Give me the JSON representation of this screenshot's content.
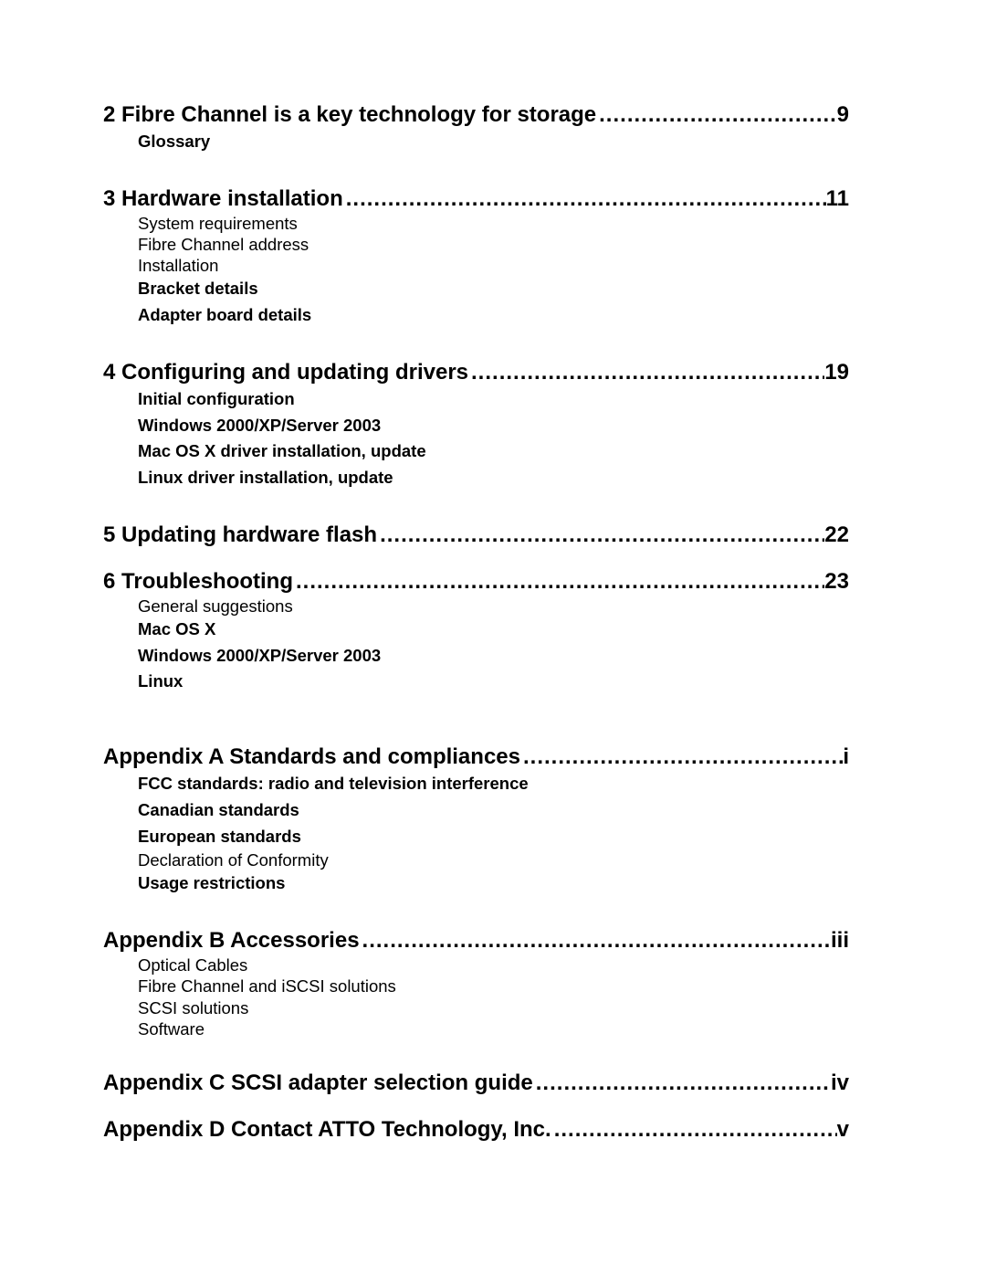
{
  "toc": {
    "sections": [
      {
        "heading": "2 Fibre Channel is a key technology for storage",
        "page": "9",
        "entries": [
          {
            "label": "Glossary",
            "style": "bold"
          }
        ],
        "gap": "normal"
      },
      {
        "heading": "3 Hardware installation",
        "page": "11",
        "entries": [
          {
            "label": "System requirements",
            "style": "normal"
          },
          {
            "label": "Fibre Channel address",
            "style": "normal"
          },
          {
            "label": "Installation",
            "style": "normal"
          },
          {
            "label": "Bracket details",
            "style": "bold"
          },
          {
            "label": "Adapter board details",
            "style": "bold"
          }
        ],
        "gap": "normal"
      },
      {
        "heading": "4 Configuring and updating drivers",
        "page": "19",
        "entries": [
          {
            "label": "Initial configuration",
            "style": "bold"
          },
          {
            "label": "Windows 2000/XP/Server 2003",
            "style": "bold"
          },
          {
            "label": "Mac OS X driver installation, update",
            "style": "bold"
          },
          {
            "label": "Linux driver installation, update",
            "style": "bold"
          }
        ],
        "gap": "normal"
      },
      {
        "heading": "5 Updating hardware flash",
        "page": "22",
        "entries": [],
        "gap": "small"
      },
      {
        "heading": "6 Troubleshooting",
        "page": "23",
        "entries": [
          {
            "label": "General suggestions",
            "style": "normal"
          },
          {
            "label": "Mac OS X",
            "style": "bold"
          },
          {
            "label": "Windows 2000/XP/Server 2003",
            "style": "bold"
          },
          {
            "label": "Linux",
            "style": "bold"
          }
        ],
        "gap": "large"
      },
      {
        "heading": "Appendix A Standards and compliances",
        "page": "i",
        "entries": [
          {
            "label": "FCC standards: radio and television interference",
            "style": "bold"
          },
          {
            "label": "Canadian standards",
            "style": "bold"
          },
          {
            "label": "European standards",
            "style": "bold"
          },
          {
            "label": "Declaration of Conformity",
            "style": "normal"
          },
          {
            "label": "Usage restrictions",
            "style": "bold"
          }
        ],
        "gap": "normal"
      },
      {
        "heading": "Appendix B Accessories",
        "page": "iii",
        "entries": [
          {
            "label": "Optical Cables",
            "style": "normal"
          },
          {
            "label": "Fibre Channel and iSCSI solutions",
            "style": "normal"
          },
          {
            "label": "SCSI solutions",
            "style": "normal"
          },
          {
            "label": "Software",
            "style": "normal"
          }
        ],
        "gap": "normal"
      },
      {
        "heading": "Appendix C SCSI adapter selection guide",
        "page": "iv",
        "entries": [],
        "gap": "small"
      },
      {
        "heading": "Appendix D Contact ATTO Technology, Inc.",
        "page": "v",
        "entries": [],
        "gap": "normal"
      }
    ],
    "dots": "...................................................................................................................."
  }
}
